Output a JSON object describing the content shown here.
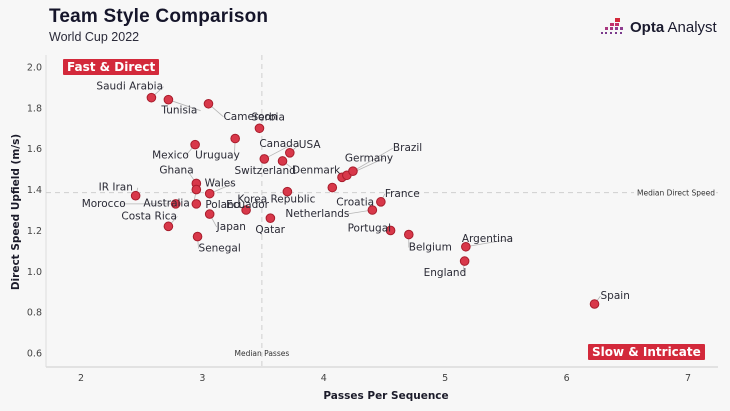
{
  "header": {
    "title": "Team Style Comparison",
    "subtitle": "World Cup 2022",
    "logo_bold": "Opta",
    "logo_light": " Analyst",
    "logo_icon": "opta-pixel-bars-icon"
  },
  "colors": {
    "point_fill": "#d8384a",
    "point_stroke": "#a81d2c",
    "quadrant_bg": "#d3293b",
    "background": "#f7f7f7"
  },
  "chart_data": {
    "type": "scatter",
    "title": "Team Style Comparison",
    "subtitle": "World Cup 2022",
    "xlabel": "Passes Per Sequence",
    "ylabel": "Direct Speed Upfield (m/s)",
    "xlim": [
      1.75,
      7.25
    ],
    "ylim": [
      0.54,
      2.07
    ],
    "xticks": [
      2,
      3,
      4,
      5,
      6,
      7
    ],
    "xtick_labels": [
      "2",
      "3",
      "4",
      "5",
      "6",
      "7"
    ],
    "yticks": [
      0.6,
      0.8,
      1.0,
      1.2,
      1.4,
      1.6,
      1.8,
      2.0
    ],
    "ytick_labels": [
      "0.6",
      "0.8",
      "1.0",
      "1.2",
      "1.4",
      "1.6",
      "1.8",
      "2.0"
    ],
    "grid": false,
    "reference_lines": [
      {
        "axis": "x",
        "value": 3.49,
        "label": "Median Passes"
      },
      {
        "axis": "y",
        "value": 1.385,
        "label": "Median Direct Speed"
      }
    ],
    "quadrant_labels": [
      {
        "text": "Fast & Direct",
        "position": "top-left"
      },
      {
        "text": "Slow & Intricate",
        "position": "bottom-right"
      }
    ],
    "points": [
      {
        "team": "Saudi Arabia",
        "x": 2.58,
        "y": 1.85
      },
      {
        "team": "Tunisia",
        "x": 2.72,
        "y": 1.84
      },
      {
        "team": "Cameroon",
        "x": 3.05,
        "y": 1.82
      },
      {
        "team": "Serbia",
        "x": 3.47,
        "y": 1.7
      },
      {
        "team": "Mexico",
        "x": 2.94,
        "y": 1.62
      },
      {
        "team": "Uruguay",
        "x": 3.27,
        "y": 1.65
      },
      {
        "team": "Canada",
        "x": 3.51,
        "y": 1.55
      },
      {
        "team": "USA",
        "x": 3.72,
        "y": 1.58
      },
      {
        "team": "Switzerland",
        "x": 3.66,
        "y": 1.54
      },
      {
        "team": "Ghana",
        "x": 2.95,
        "y": 1.43
      },
      {
        "team": "Australia",
        "x": 2.95,
        "y": 1.4
      },
      {
        "team": "Wales",
        "x": 3.06,
        "y": 1.38
      },
      {
        "team": "IR Iran",
        "x": 2.45,
        "y": 1.37
      },
      {
        "team": "Morocco",
        "x": 2.78,
        "y": 1.33
      },
      {
        "team": "Poland",
        "x": 2.95,
        "y": 1.33
      },
      {
        "team": "Japan",
        "x": 3.06,
        "y": 1.28
      },
      {
        "team": "Ecuador",
        "x": 3.36,
        "y": 1.3
      },
      {
        "team": "Korea Republic",
        "x": 3.7,
        "y": 1.39
      },
      {
        "team": "Qatar",
        "x": 3.56,
        "y": 1.26
      },
      {
        "team": "Costa Rica",
        "x": 2.72,
        "y": 1.22
      },
      {
        "team": "Senegal",
        "x": 2.96,
        "y": 1.17
      },
      {
        "team": "Croatia",
        "x": 4.07,
        "y": 1.41
      },
      {
        "team": "Denmark",
        "x": 4.15,
        "y": 1.46
      },
      {
        "team": "Germany",
        "x": 4.19,
        "y": 1.47
      },
      {
        "team": "Brazil",
        "x": 4.24,
        "y": 1.49
      },
      {
        "team": "France",
        "x": 4.47,
        "y": 1.34
      },
      {
        "team": "Netherlands",
        "x": 4.4,
        "y": 1.3
      },
      {
        "team": "Portugal",
        "x": 4.55,
        "y": 1.2
      },
      {
        "team": "Belgium",
        "x": 4.7,
        "y": 1.18
      },
      {
        "team": "Argentina",
        "x": 5.17,
        "y": 1.12
      },
      {
        "team": "England",
        "x": 5.16,
        "y": 1.05
      },
      {
        "team": "Spain",
        "x": 6.23,
        "y": 0.84
      }
    ]
  }
}
